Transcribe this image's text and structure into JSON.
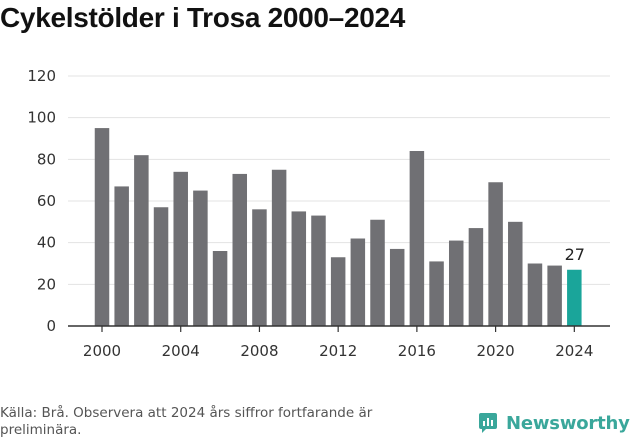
{
  "title": "Cykelstölder i Trosa 2000–2024",
  "source_note": "Källa: Brå. Observera att 2024 års siffror fortfarande är preliminära.",
  "brand": {
    "name": "Newsworthy",
    "color": "#3aa79b"
  },
  "colors": {
    "bar": "#707074",
    "highlight": "#1aa59a",
    "grid": "#e3e3e3",
    "axis": "#333333"
  },
  "chart_data": {
    "type": "bar",
    "title": "Cykelstölder i Trosa 2000–2024",
    "xlabel": "",
    "ylabel": "",
    "ylim": [
      0,
      120
    ],
    "yticks": [
      "0",
      "20",
      "40",
      "60",
      "80",
      "100",
      "120"
    ],
    "xticks": [
      "2000",
      "2004",
      "2008",
      "2012",
      "2016",
      "2020",
      "2024"
    ],
    "grid": true,
    "categories": [
      "2000",
      "2001",
      "2002",
      "2003",
      "2004",
      "2005",
      "2006",
      "2007",
      "2008",
      "2009",
      "2010",
      "2011",
      "2012",
      "2013",
      "2014",
      "2015",
      "2016",
      "2017",
      "2018",
      "2019",
      "2020",
      "2021",
      "2022",
      "2023",
      "2024"
    ],
    "values": [
      95,
      67,
      82,
      57,
      74,
      65,
      36,
      73,
      56,
      75,
      55,
      53,
      33,
      42,
      51,
      37,
      84,
      31,
      41,
      47,
      69,
      50,
      30,
      29,
      27
    ],
    "highlight_category": "2024",
    "annotation": {
      "category": "2024",
      "text": "27"
    }
  }
}
